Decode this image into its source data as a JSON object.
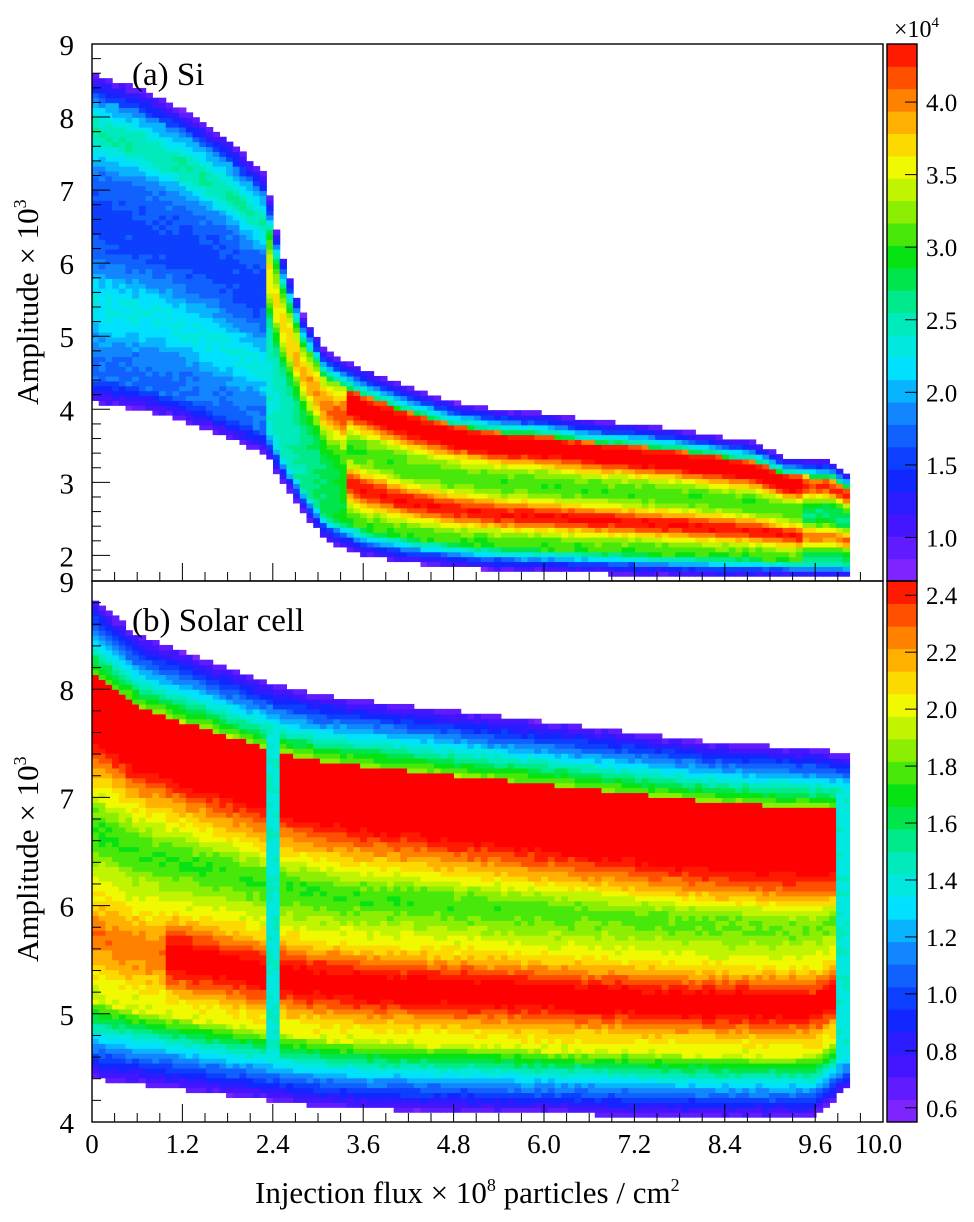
{
  "figure": {
    "xlabel_main": "Injection flux × 10",
    "xlabel_exp": "8",
    "xlabel_tail": " particles / cm",
    "xlabel_exp2": "2"
  },
  "chart_data": [
    {
      "type": "heatmap",
      "panel": "(a) Si",
      "title": "(a) Si",
      "ylabel": "Amplitude × 10",
      "ylabel_exp": "3",
      "xlabel": "Injection flux × 10^8 particles / cm^2",
      "xlim": [
        0,
        10.5
      ],
      "ylim": [
        1.65,
        9.0
      ],
      "y_ticks": [
        "2",
        "3",
        "4",
        "5",
        "6",
        "7",
        "8",
        "9"
      ],
      "x_ticks": [
        "0",
        "1.2",
        "2.4",
        "3.6",
        "4.8",
        "6.0",
        "7.2",
        "8.4",
        "9.6",
        "10.0"
      ],
      "colorbar": {
        "label": "×10",
        "label_exp": "4",
        "range": [
          0.7,
          4.4
        ],
        "ticks": [
          "1.0",
          "1.5",
          "2.0",
          "2.5",
          "3.0",
          "3.5",
          "4.0"
        ]
      },
      "envelope": {
        "x": [
          0,
          0.6,
          1.2,
          1.8,
          2.3,
          2.5,
          2.8,
          3.1,
          3.6,
          4.2,
          4.8,
          5.4,
          6.0,
          6.6,
          7.2,
          7.8,
          8.4,
          8.8,
          9.2,
          9.6,
          9.8,
          10.0
        ],
        "upper": [
          8.6,
          8.4,
          8.1,
          7.7,
          7.2,
          6.2,
          5.3,
          4.8,
          4.55,
          4.3,
          4.1,
          4.0,
          3.95,
          3.85,
          3.8,
          3.72,
          3.62,
          3.55,
          3.35,
          3.3,
          3.3,
          3.15
        ],
        "lower": [
          4.1,
          4.0,
          3.85,
          3.6,
          3.4,
          3.05,
          2.6,
          2.2,
          2.0,
          1.9,
          1.85,
          1.8,
          1.78,
          1.76,
          1.74,
          1.72,
          1.7,
          1.7,
          1.7,
          1.7,
          1.7,
          1.7
        ]
      },
      "notes": "High counts (red) in two bands around 3.1-3.9 and 2.3-2.7 for flux > 3.6; blue/cyan dominant for flux < 2.4; discontinuity at flux 2.4."
    },
    {
      "type": "heatmap",
      "panel": "(b) Solar cell",
      "title": "(b) Solar cell",
      "ylabel": "Amplitude × 10",
      "ylabel_exp": "3",
      "xlabel": "Injection flux × 10^8 particles / cm^2",
      "xlim": [
        0,
        10.5
      ],
      "ylim": [
        4.0,
        9.0
      ],
      "y_ticks": [
        "4",
        "5",
        "6",
        "7",
        "8",
        "9"
      ],
      "x_ticks": [
        "0",
        "1.2",
        "2.4",
        "3.6",
        "4.8",
        "6.0",
        "7.2",
        "8.4",
        "9.6",
        "10.0"
      ],
      "colorbar": {
        "range": [
          0.55,
          2.45
        ],
        "ticks": [
          "0.6",
          "0.8",
          "1.0",
          "1.2",
          "1.4",
          "1.6",
          "1.8",
          "2.0",
          "2.2",
          "2.4"
        ]
      },
      "envelope": {
        "x": [
          0,
          0.6,
          1.2,
          1.8,
          2.4,
          3.0,
          3.6,
          4.8,
          6.0,
          7.2,
          8.4,
          9.6,
          10.0
        ],
        "upper": [
          8.85,
          8.5,
          8.35,
          8.2,
          8.05,
          7.95,
          7.9,
          7.8,
          7.7,
          7.6,
          7.5,
          7.45,
          7.4
        ],
        "lower": [
          4.4,
          4.35,
          4.3,
          4.25,
          4.2,
          4.15,
          4.12,
          4.1,
          4.08,
          4.06,
          4.05,
          4.05,
          4.3
        ]
      },
      "notes": "Two red bands: upper ~6.6-7.7 (growing toward higher flux), lower ~4.9-5.6; yellow/green between; thin vertical discontinuity at flux 2.4."
    }
  ]
}
